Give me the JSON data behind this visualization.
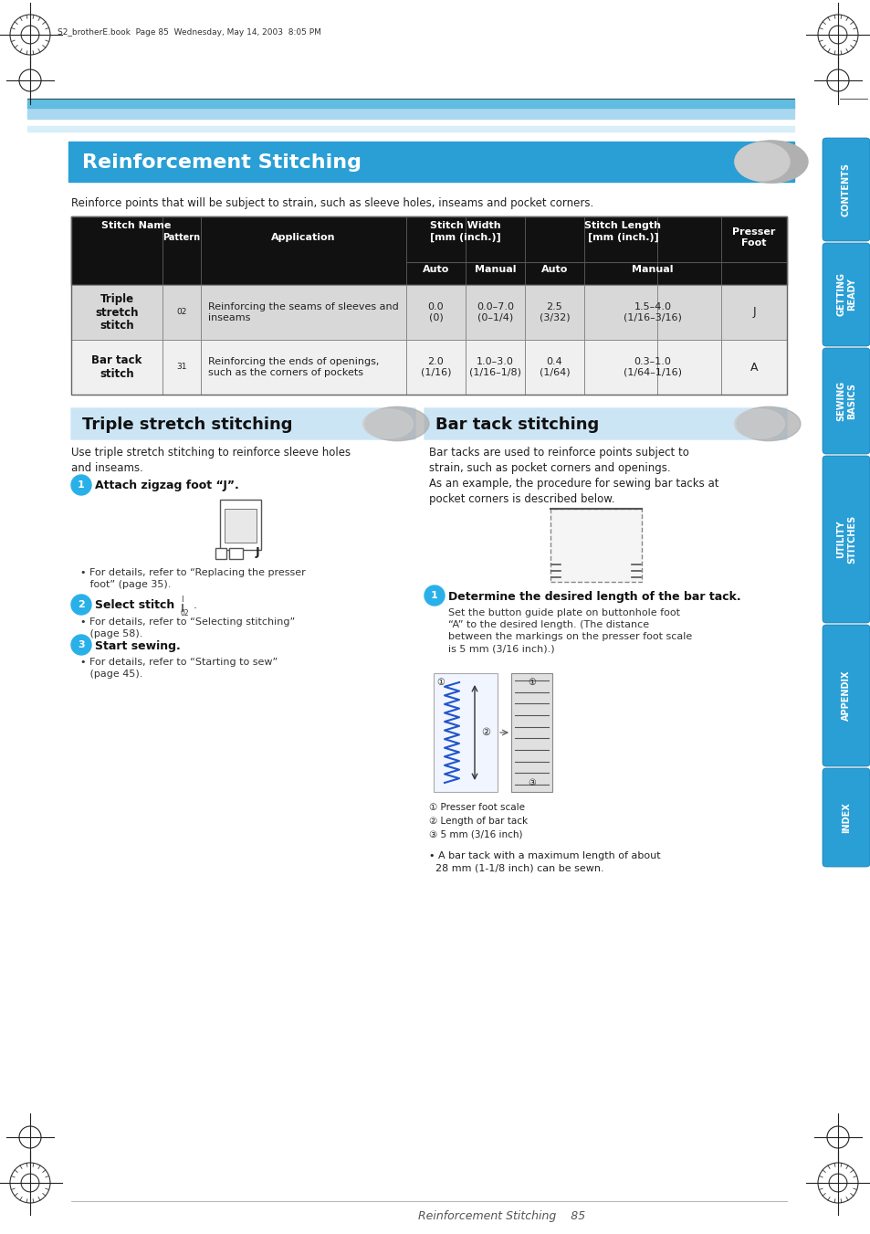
{
  "page_bg": "#ffffff",
  "top_header_text": "S2_brotherE.book  Page 85  Wednesday, May 14, 2003  8:05 PM",
  "blue_stripe1_color": "#7bc8e8",
  "blue_stripe2_color": "#3a9fd4",
  "section_title": "Reinforcement Stitching",
  "section_title_bg": "#2a9fd6",
  "section_title_color": "#ffffff",
  "intro_text": "Reinforce points that will be subject to strain, such as sleeve holes, inseams and pocket corners.",
  "table_header_bg": "#111111",
  "table_header_color": "#ffffff",
  "table_row1_bg": "#d8d8d8",
  "table_row2_bg": "#f0f0f0",
  "table_rows": [
    [
      "Triple\nstretch\nstitch",
      "02",
      "Reinforcing the seams of sleeves and\ninseams",
      "0.0\n(0)",
      "0.0–7.0\n(0–1/4)",
      "2.5\n(3/32)",
      "1.5–4.0\n(1/16–3/16)",
      "J"
    ],
    [
      "Bar tack\nstitch",
      "31",
      "Reinforcing the ends of openings,\nsuch as the corners of pockets",
      "2.0\n(1/16)",
      "1.0–3.0\n(1/16–1/8)",
      "0.4\n(1/64)",
      "0.3–1.0\n(1/64–1/16)",
      "A"
    ]
  ],
  "left_section_title": "Triple stretch stitching",
  "left_section_bg": "#d0e8f5",
  "right_section_title": "Bar tack stitching",
  "right_section_bg": "#d0e8f5",
  "left_step1_title": "Attach zigzag foot “J”.",
  "left_step1_note": "• For details, refer to “Replacing the presser\n   foot” (page 35).",
  "left_step2_title": "Select stitch",
  "left_step2_note": "• For details, refer to “Selecting stitching”\n   (page 58).",
  "left_step3_title": "Start sewing.",
  "left_step3_note": "• For details, refer to “Starting to sew”\n   (page 45).",
  "right_intro": "Bar tacks are used to reinforce points subject to\nstrain, such as pocket corners and openings.\nAs an example, the procedure for sewing bar tacks at\npocket corners is described below.",
  "right_step1_title": "Determine the desired length of the bar tack.",
  "right_step1_text": "Set the button guide plate on buttonhole foot\n“A” to the desired length. (The distance\nbetween the markings on the presser foot scale\nis 5 mm (3/16 inch).)",
  "right_note": "• A bar tack with a maximum length of about\n  28 mm (1-1/8 inch) can be sewn.",
  "right_labels": [
    "① Presser foot scale",
    "② Length of bar tack",
    "③ 5 mm (3/16 inch)"
  ],
  "sidebar_items": [
    "CONTENTS",
    "GETTING\nREADY",
    "SEWING\nBASICS",
    "UTILITY\nSTITCHES",
    "APPENDIX",
    "INDEX"
  ],
  "sidebar_bg": "#2a9fd6",
  "footer_text": "Reinforcement Stitching    85",
  "step_circle_color": "#2ab0e8"
}
